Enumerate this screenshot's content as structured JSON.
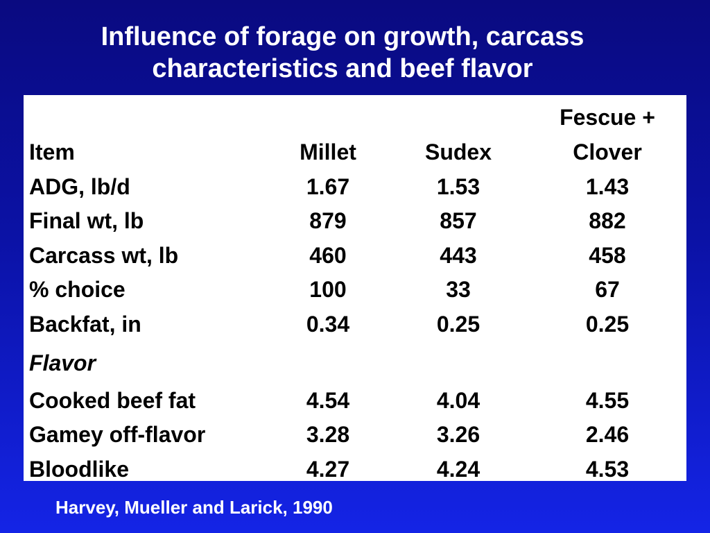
{
  "title": {
    "line1": "Influence of forage on growth, carcass",
    "line2": "characteristics and beef flavor"
  },
  "table": {
    "header": {
      "item": "Item",
      "millet": "Millet",
      "sudex": "Sudex",
      "fescue_line1": "Fescue +",
      "fescue_line2": "Clover"
    },
    "rows": [
      {
        "item": "ADG, lb/d",
        "millet": "1.67",
        "sudex": "1.53",
        "fescue_clover": "1.43"
      },
      {
        "item": "Final wt, lb",
        "millet": "879",
        "sudex": "857",
        "fescue_clover": "882"
      },
      {
        "item": "Carcass wt, lb",
        "millet": "460",
        "sudex": "443",
        "fescue_clover": "458"
      },
      {
        "item": "% choice",
        "millet": "100",
        "sudex": "33",
        "fescue_clover": "67"
      },
      {
        "item": "Backfat, in",
        "millet": "0.34",
        "sudex": "0.25",
        "fescue_clover": "0.25"
      }
    ],
    "section_label": "Flavor",
    "flavor_rows": [
      {
        "item": "Cooked beef fat",
        "millet": "4.54",
        "sudex": "4.04",
        "fescue_clover": "4.55"
      },
      {
        "item": "Gamey off-flavor",
        "millet": "3.28",
        "sudex": "3.26",
        "fescue_clover": "2.46"
      },
      {
        "item": "Bloodlike",
        "millet": "4.27",
        "sudex": "4.24",
        "fescue_clover": "4.53"
      }
    ]
  },
  "citation": "Harvey, Mueller and Larick, 1990",
  "colors": {
    "background_top": "#0a0a80",
    "background_bottom": "#1424e6",
    "table_background": "#ffffff",
    "title_text": "#ffffff"
  }
}
